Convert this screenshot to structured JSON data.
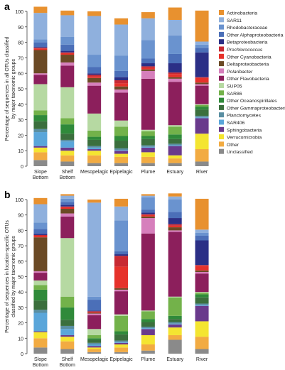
{
  "legend": [
    {
      "name": "Actinobacteria",
      "color": "#e8912f",
      "italic": false
    },
    {
      "name": "SAR11",
      "color": "#8fb0dd",
      "italic": false
    },
    {
      "name": "Rhodobacteraceae",
      "color": "#6a93cf",
      "italic": false
    },
    {
      "name": "Other Alphaproteobacteria",
      "color": "#4b6fb8",
      "italic": false
    },
    {
      "name": "Betaproteobacteria",
      "color": "#2b2f86",
      "italic": false
    },
    {
      "name": "Prochlorococcus",
      "color": "#c82a33",
      "italic": true
    },
    {
      "name": "Other Cyanobacteria",
      "color": "#e6322b",
      "italic": false
    },
    {
      "name": "Deltaproteobacteria",
      "color": "#6b4a25",
      "italic": false
    },
    {
      "name": "Polaribacter",
      "color": "#d67fbc",
      "italic": true
    },
    {
      "name": "Other Flavobacteria",
      "color": "#8c1f5c",
      "italic": false
    },
    {
      "name": "SUP05",
      "color": "#b6d9a2",
      "italic": false
    },
    {
      "name": "SAR86",
      "color": "#73b24a",
      "italic": false
    },
    {
      "name": "Other Oceanospirillales",
      "color": "#2f8a3a",
      "italic": false
    },
    {
      "name": "Other Gammaproteobacteria",
      "color": "#3b6f3d",
      "italic": false
    },
    {
      "name": "Planctomycetes",
      "color": "#5a8fa2",
      "italic": false
    },
    {
      "name": "SAR406",
      "color": "#5aa6da",
      "italic": false
    },
    {
      "name": "Sphingobacteria",
      "color": "#6a3a8c",
      "italic": false
    },
    {
      "name": "Verrucomicrobia",
      "color": "#f4e531",
      "italic": false
    },
    {
      "name": "Other",
      "color": "#f2ab42",
      "italic": false
    },
    {
      "name": "Unclassified",
      "color": "#8a8a8a",
      "italic": false
    }
  ],
  "chart_data": [
    {
      "type": "bar",
      "stacked": true,
      "panel_label": "a",
      "ylabel_lines": [
        "Percentage of sequences in all OTUs classified",
        "by major taxonomic groups"
      ],
      "ylim": [
        0,
        100
      ],
      "yticks": [
        0,
        10,
        20,
        30,
        40,
        50,
        60,
        70,
        80,
        90,
        100
      ],
      "grid": false,
      "legend_position": "right",
      "categories": [
        "Slope Bottom",
        "Shelf Bottom",
        "Mesopelagic",
        "Epipelagic",
        "Plume",
        "Estuary",
        "River"
      ],
      "series": [
        {
          "name": "Unclassified",
          "values": [
            4,
            3,
            2,
            2,
            2,
            2,
            3
          ]
        },
        {
          "name": "Other",
          "values": [
            5,
            4,
            5,
            4,
            4,
            3,
            8
          ]
        },
        {
          "name": "Verrucomicrobia",
          "values": [
            3,
            3,
            3,
            2,
            3,
            2,
            10
          ]
        },
        {
          "name": "Sphingobacteria",
          "values": [
            1,
            2,
            1,
            2,
            3,
            6,
            10
          ]
        },
        {
          "name": "SAR406",
          "values": [
            9,
            4,
            1,
            0.5,
            0.5,
            0.5,
            0.5
          ]
        },
        {
          "name": "Planctomycetes",
          "values": [
            2,
            1,
            1,
            1,
            1,
            1,
            1
          ]
        },
        {
          "name": "Other Gammaproteobacteria",
          "values": [
            5,
            4,
            4,
            5,
            4,
            3,
            4
          ]
        },
        {
          "name": "Other Oceanospirillales",
          "values": [
            4,
            6,
            2,
            3,
            2,
            3,
            2
          ]
        },
        {
          "name": "SAR86",
          "values": [
            3,
            4,
            4,
            6,
            3,
            5,
            1
          ]
        },
        {
          "name": "SUP05",
          "values": [
            17,
            20,
            11,
            4,
            1,
            1,
            0.5
          ]
        },
        {
          "name": "Other Flavobacteria",
          "values": [
            6,
            14,
            18,
            18,
            33,
            28,
            12
          ]
        },
        {
          "name": "Polaribacter",
          "values": [
            1,
            2,
            2,
            2,
            5,
            2,
            1
          ]
        },
        {
          "name": "Deltaproteobacteria",
          "values": [
            15,
            5,
            3,
            2,
            1,
            1,
            1
          ]
        },
        {
          "name": "Other Cyanobacteria",
          "values": [
            1,
            1,
            1,
            2,
            1,
            2,
            3
          ]
        },
        {
          "name": "Prochlorococcus",
          "values": [
            0.5,
            0.5,
            1,
            2,
            1,
            1,
            0.5
          ]
        },
        {
          "name": "Betaproteobacteria",
          "values": [
            0.5,
            1,
            1,
            2,
            2,
            6,
            16
          ]
        },
        {
          "name": "Other Alphaproteobacteria",
          "values": [
            3,
            4,
            4,
            4,
            3,
            6,
            3
          ]
        },
        {
          "name": "Rhodobacteraceae",
          "values": [
            2,
            5,
            8,
            10,
            12,
            12,
            2
          ]
        },
        {
          "name": "SAR11",
          "values": [
            17,
            14,
            25,
            20,
            14,
            10,
            2
          ]
        },
        {
          "name": "Actinobacteria",
          "values": [
            4,
            3,
            3,
            4,
            4,
            8,
            20
          ]
        }
      ]
    },
    {
      "type": "bar",
      "stacked": true,
      "panel_label": "b",
      "ylabel_lines": [
        "Percentage of sequences in location-specific OTUs",
        "classified by major taxonomic groups"
      ],
      "ylim": [
        0,
        100
      ],
      "yticks": [
        0,
        10,
        20,
        30,
        40,
        50,
        60,
        70,
        80,
        90,
        100
      ],
      "grid": false,
      "legend_position": "none",
      "categories": [
        "Slope Bottom",
        "Shelf Bottom",
        "Mesopelagic",
        "Epipelagic",
        "Plume",
        "Estuary",
        "River"
      ],
      "series": [
        {
          "name": "Unclassified",
          "values": [
            4,
            3,
            1,
            1,
            2,
            9,
            3
          ]
        },
        {
          "name": "Other",
          "values": [
            6,
            5,
            2,
            3,
            4,
            3,
            8
          ]
        },
        {
          "name": "Verrucomicrobia",
          "values": [
            4,
            3,
            1,
            2,
            6,
            5,
            10
          ]
        },
        {
          "name": "Sphingobacteria",
          "values": [
            0.5,
            1,
            1,
            1,
            4,
            2,
            10
          ]
        },
        {
          "name": "SAR406",
          "values": [
            12,
            4,
            1,
            0.5,
            0.5,
            0.5,
            0.5
          ]
        },
        {
          "name": "Planctomycetes",
          "values": [
            2,
            2,
            1,
            1,
            1,
            1,
            1
          ]
        },
        {
          "name": "Other Gammaproteobacteria",
          "values": [
            6,
            4,
            2,
            4,
            3,
            2,
            4
          ]
        },
        {
          "name": "Other Oceanospirillales",
          "values": [
            7,
            8,
            1,
            2,
            2,
            2,
            2
          ]
        },
        {
          "name": "SAR86",
          "values": [
            3,
            7,
            2,
            10,
            5,
            12,
            1
          ]
        },
        {
          "name": "SUP05",
          "values": [
            3,
            38,
            4,
            1,
            0.5,
            0.5,
            0.5
          ]
        },
        {
          "name": "Other Flavobacteria",
          "values": [
            5,
            14,
            9,
            15,
            50,
            42,
            12
          ]
        },
        {
          "name": "Polaribacter",
          "values": [
            1,
            2,
            1,
            1,
            10,
            1,
            1
          ]
        },
        {
          "name": "Deltaproteobacteria",
          "values": [
            22,
            3,
            0.5,
            1,
            1,
            2,
            1
          ]
        },
        {
          "name": "Other Cyanobacteria",
          "values": [
            1,
            1,
            0.5,
            14,
            1,
            1,
            3
          ]
        },
        {
          "name": "Prochlorococcus",
          "values": [
            0.5,
            0.5,
            0.5,
            7,
            0.5,
            1,
            0.5
          ]
        },
        {
          "name": "Betaproteobacteria",
          "values": [
            1,
            1,
            0.5,
            1,
            1,
            4,
            16
          ]
        },
        {
          "name": "Other Alphaproteobacteria",
          "values": [
            3,
            2,
            7,
            2,
            2,
            4,
            3
          ]
        },
        {
          "name": "Rhodobacteraceae",
          "values": [
            4,
            2,
            2,
            20,
            8,
            8,
            2
          ]
        },
        {
          "name": "SAR11",
          "values": [
            12,
            2,
            61,
            9,
            1,
            2,
            2
          ]
        },
        {
          "name": "Actinobacteria",
          "values": [
            4,
            1,
            2,
            5,
            1,
            2,
            20
          ]
        }
      ]
    }
  ]
}
